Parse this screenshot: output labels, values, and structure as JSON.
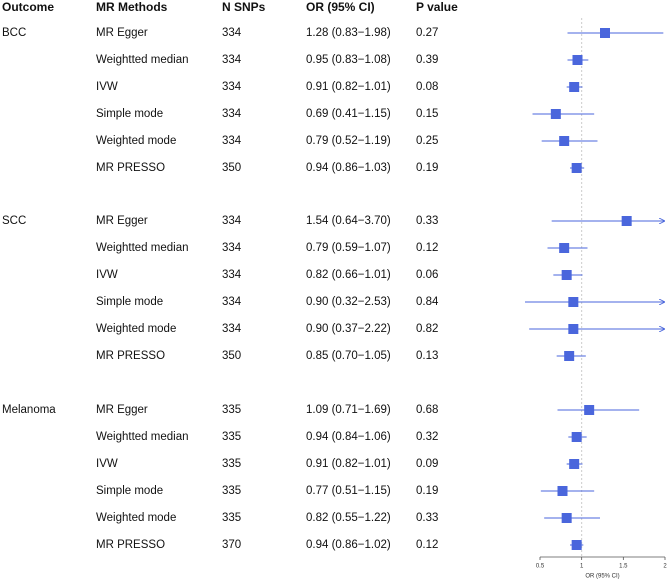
{
  "chart_data": {
    "type": "forest",
    "columns": [
      "Outcome",
      "MR Methods",
      "N SNPs",
      "OR (95% CI)",
      "P value"
    ],
    "x_label": "OR (95% CI)",
    "xlim": [
      0.5,
      2
    ],
    "xticks": [
      0.5,
      1,
      1.5,
      2
    ],
    "reference_line": 1,
    "color": "#4a66dc",
    "groups": [
      {
        "outcome": "BCC",
        "methods": [
          "MR Egger",
          "Weightted median",
          "IVW",
          "Simple mode",
          "Weighted mode",
          "MR PRESSO"
        ],
        "n_snps": [
          334,
          334,
          334,
          334,
          334,
          350
        ],
        "or": [
          1.28,
          0.95,
          0.91,
          0.69,
          0.79,
          0.94
        ],
        "lower": [
          0.83,
          0.83,
          0.82,
          0.41,
          0.52,
          0.86
        ],
        "upper": [
          1.98,
          1.08,
          1.01,
          1.15,
          1.19,
          1.03
        ],
        "or_labels": [
          "1.28 (0.83−1.98)",
          "0.95 (0.83−1.08)",
          "0.91 (0.82−1.01)",
          "0.69 (0.41−1.15)",
          "0.79 (0.52−1.19)",
          "0.94 (0.86−1.03)"
        ],
        "p_values": [
          0.27,
          0.39,
          0.08,
          0.15,
          0.25,
          0.19
        ]
      },
      {
        "outcome": "SCC",
        "methods": [
          "MR Egger",
          "Weightted median",
          "IVW",
          "Simple mode",
          "Weighted mode",
          "MR PRESSO"
        ],
        "n_snps": [
          334,
          334,
          334,
          334,
          334,
          350
        ],
        "or": [
          1.54,
          0.79,
          0.82,
          0.9,
          0.9,
          0.85
        ],
        "lower": [
          0.64,
          0.59,
          0.66,
          0.32,
          0.37,
          0.7
        ],
        "upper": [
          3.7,
          1.07,
          1.01,
          2.53,
          2.22,
          1.05
        ],
        "or_labels": [
          "1.54 (0.64−3.70)",
          "0.79 (0.59−1.07)",
          "0.82 (0.66−1.01)",
          "0.90 (0.32−2.53)",
          "0.90 (0.37−2.22)",
          "0.85 (0.70−1.05)"
        ],
        "p_values": [
          0.33,
          0.12,
          0.06,
          0.84,
          0.82,
          0.13
        ]
      },
      {
        "outcome": "Melanoma",
        "methods": [
          "MR Egger",
          "Weightted median",
          "IVW",
          "Simple mode",
          "Weighted mode",
          "MR PRESSO"
        ],
        "n_snps": [
          335,
          335,
          335,
          335,
          335,
          370
        ],
        "or": [
          1.09,
          0.94,
          0.91,
          0.77,
          0.82,
          0.94
        ],
        "lower": [
          0.71,
          0.84,
          0.82,
          0.51,
          0.55,
          0.86
        ],
        "upper": [
          1.69,
          1.06,
          1.01,
          1.15,
          1.22,
          1.02
        ],
        "or_labels": [
          "1.09 (0.71−1.69)",
          "0.94 (0.84−1.06)",
          "0.91 (0.82−1.01)",
          "0.77 (0.51−1.15)",
          "0.82 (0.55−1.22)",
          "0.94 (0.86−1.02)"
        ],
        "p_values": [
          0.68,
          0.32,
          0.09,
          0.19,
          0.33,
          0.12
        ]
      }
    ]
  }
}
